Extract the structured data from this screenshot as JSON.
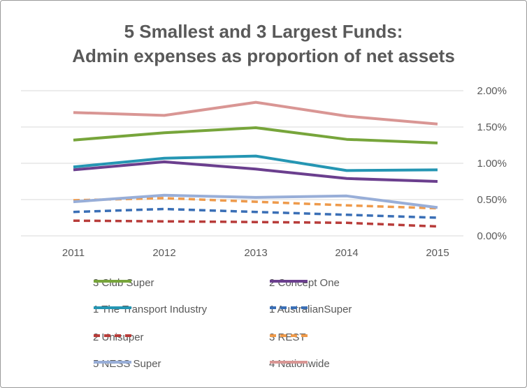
{
  "chart_data": {
    "type": "line",
    "title_line1": "5 Smallest and 3 Largest Funds:",
    "title_line2": "Admin expenses as proportion of net assets",
    "x": [
      "2011",
      "2012",
      "2013",
      "2014",
      "2015"
    ],
    "y_ticks": [
      "0.00%",
      "0.50%",
      "1.00%",
      "1.50%",
      "2.00%"
    ],
    "ylim": [
      0,
      2.0
    ],
    "y_unit": "%",
    "y_axis_side": "right",
    "grid": true,
    "legend_position": "bottom",
    "series": [
      {
        "name": "3 Club Super",
        "values": [
          1.32,
          1.42,
          1.49,
          1.33,
          1.28
        ],
        "color": "#77a53b",
        "dash": "solid"
      },
      {
        "name": "2 Concept One",
        "values": [
          0.91,
          1.02,
          0.92,
          0.79,
          0.75
        ],
        "color": "#6b3f8e",
        "dash": "solid"
      },
      {
        "name": "1 The Transport Industry",
        "values": [
          0.95,
          1.07,
          1.1,
          0.9,
          0.91
        ],
        "color": "#2596b3",
        "dash": "solid"
      },
      {
        "name": "1 AustralianSuper",
        "values": [
          0.33,
          0.37,
          0.33,
          0.29,
          0.25
        ],
        "color": "#3a6fb6",
        "dash": "dashed"
      },
      {
        "name": "2 Unisuper",
        "values": [
          0.21,
          0.2,
          0.19,
          0.18,
          0.13
        ],
        "color": "#b83c3a",
        "dash": "dashed"
      },
      {
        "name": "3 REST",
        "values": [
          0.49,
          0.52,
          0.47,
          0.42,
          0.38
        ],
        "color": "#ee9a4b",
        "dash": "dashed"
      },
      {
        "name": "5 NESS Super",
        "values": [
          0.47,
          0.56,
          0.53,
          0.55,
          0.39
        ],
        "color": "#98aed8",
        "dash": "solid"
      },
      {
        "name": "4 Nationwide",
        "values": [
          1.7,
          1.66,
          1.84,
          1.65,
          1.54
        ],
        "color": "#d99694",
        "dash": "solid"
      }
    ]
  }
}
